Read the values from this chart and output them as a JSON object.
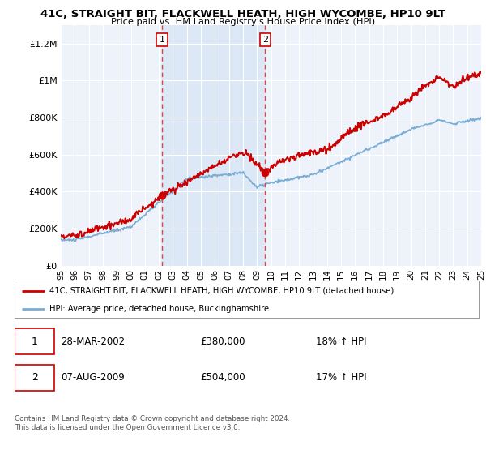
{
  "title": "41C, STRAIGHT BIT, FLACKWELL HEATH, HIGH WYCOMBE, HP10 9LT",
  "subtitle": "Price paid vs. HM Land Registry's House Price Index (HPI)",
  "background_color": "#ffffff",
  "plot_bg_color": "#ffffff",
  "ylim": [
    0,
    1300000
  ],
  "yticks": [
    0,
    200000,
    400000,
    600000,
    800000,
    1000000,
    1200000
  ],
  "ytick_labels": [
    "£0",
    "£200K",
    "£400K",
    "£600K",
    "£800K",
    "£1M",
    "£1.2M"
  ],
  "sale1_year": 2002.23,
  "sale1_price": 380000,
  "sale2_year": 2009.58,
  "sale2_price": 504000,
  "sale1_date": "28-MAR-2002",
  "sale1_hpi": "18% ↑ HPI",
  "sale2_date": "07-AUG-2009",
  "sale2_hpi": "17% ↑ HPI",
  "red_color": "#cc0000",
  "blue_color": "#7aadd4",
  "span_color": "#dce8f5",
  "legend_label_red": "41C, STRAIGHT BIT, FLACKWELL HEATH, HIGH WYCOMBE, HP10 9LT (detached house)",
  "legend_label_blue": "HPI: Average price, detached house, Buckinghamshire",
  "footer": "Contains HM Land Registry data © Crown copyright and database right 2024.\nThis data is licensed under the Open Government Licence v3.0."
}
